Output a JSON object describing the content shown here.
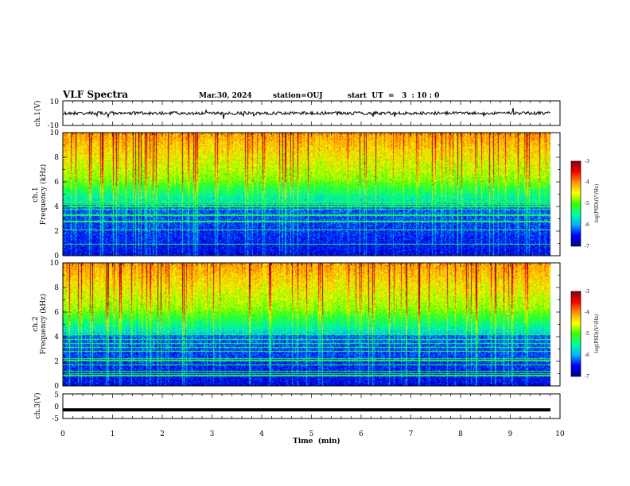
{
  "header": {
    "title": "VLF Spectra",
    "date": "Mar.30, 2024",
    "station": "station=OUJ",
    "start": "start  UT  =   3  : 10 : 0"
  },
  "colors": {
    "colormap": [
      "#00008c",
      "#0000ff",
      "#00b4ff",
      "#00ffa0",
      "#33ff00",
      "#ffff00",
      "#ff9900",
      "#ff0000",
      "#8c0000"
    ],
    "axis": "#000000"
  },
  "chart_data": [
    {
      "type": "line",
      "name": "ch1-waveform",
      "ylabel": "ch.1(V)",
      "ylim": [
        -10,
        10
      ],
      "yticks": [
        "10",
        "-10"
      ],
      "xlim": [
        0,
        10
      ],
      "note_level": 0
    },
    {
      "type": "heatmap",
      "name": "ch1-spectrogram",
      "ylabel": "ch.1\nFrequency  (kHz)",
      "ylabel_top": "ch.1",
      "ylabel_bottom": "Frequency  (kHz)",
      "ylim": [
        0,
        10
      ],
      "yticks": [
        "0",
        "2",
        "4",
        "6",
        "8",
        "10"
      ],
      "xlim": [
        0,
        10
      ],
      "data_end_min": 9.8,
      "colorbar": {
        "label": "log(PSD)(V²/Hz)",
        "ticks": [
          "-3",
          "-4",
          "-5",
          "-6",
          "-7"
        ],
        "range": [
          -7,
          -3
        ]
      }
    },
    {
      "type": "heatmap",
      "name": "ch2-spectrogram",
      "ylabel_top": "ch.2",
      "ylabel_bottom": "Frequency  (kHz)",
      "ylim": [
        0,
        10
      ],
      "yticks": [
        "0",
        "2",
        "4",
        "6",
        "8",
        "10"
      ],
      "xlim": [
        0,
        10
      ],
      "data_end_min": 9.8,
      "colorbar": {
        "label": "log(PSD)(V²/Hz)",
        "ticks": [
          "-3",
          "-4",
          "-5",
          "-6",
          "-7"
        ],
        "range": [
          -7,
          -3
        ]
      }
    },
    {
      "type": "line",
      "name": "ch3-waveform",
      "ylabel": "ch.3(V)",
      "ylim": [
        -5,
        5
      ],
      "yticks": [
        "5",
        "0",
        "-5"
      ],
      "xlim": [
        0,
        10
      ],
      "values_level": -1.5,
      "xlabel": "Time  (min)",
      "xticks": [
        "0",
        "1",
        "2",
        "3",
        "4",
        "5",
        "6",
        "7",
        "8",
        "9",
        "10"
      ]
    }
  ]
}
